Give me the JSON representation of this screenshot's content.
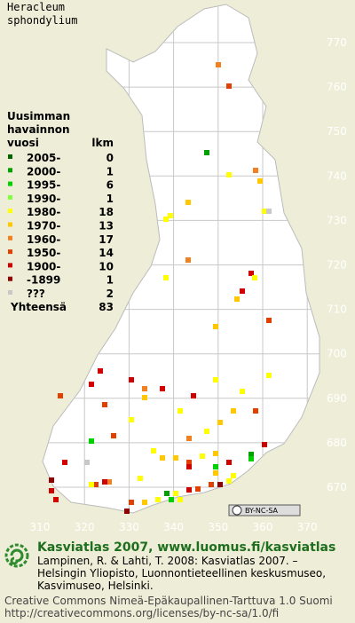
{
  "title": [
    "Heracleum",
    "sphondylium"
  ],
  "legend": {
    "heading": [
      "Uusimman",
      "havainnon",
      "vuosi"
    ],
    "count_heading": "lkm",
    "items": [
      {
        "label": "2005-",
        "count": 0,
        "color": "#006400"
      },
      {
        "label": "2000-",
        "count": 1,
        "color": "#00a000"
      },
      {
        "label": "1995-",
        "count": 6,
        "color": "#00d000"
      },
      {
        "label": "1990-",
        "count": 1,
        "color": "#80ff40"
      },
      {
        "label": "1980-",
        "count": 18,
        "color": "#ffff00"
      },
      {
        "label": "1970-",
        "count": 13,
        "color": "#ffc800"
      },
      {
        "label": "1960-",
        "count": 17,
        "color": "#f08020"
      },
      {
        "label": "1950-",
        "count": 14,
        "color": "#e04000"
      },
      {
        "label": "1900-",
        "count": 10,
        "color": "#d00000"
      },
      {
        "label": "-1899",
        "count": 1,
        "color": "#900000"
      },
      {
        "label": "???",
        "count": 2,
        "color": "#c8c8c8"
      }
    ],
    "total_label": "Yhteensä",
    "total": 83
  },
  "grid": {
    "north_labels": [
      770,
      760,
      750,
      740,
      730,
      720,
      710,
      700,
      690,
      680,
      670
    ],
    "east_labels": [
      310,
      320,
      330,
      340,
      350,
      360,
      370
    ]
  },
  "badge": "BY-NC-SA",
  "footer": {
    "site": "Kasviatlas 2007, www.luomus.fi/kasviatlas",
    "citation": [
      "Lampinen, R. & Lahti, T. 2008: Kasviatlas 2007. –",
      "Helsingin Yliopisto, Luonnontieteellinen keskusmuseo,",
      "Kasvimuseo, Helsinki."
    ],
    "license": [
      "Creative Commons Nimeä-Epäkaupallinen-Tarttuva 1.0 Suomi",
      "http://creativecommons.org/licenses/by-nc-sa/1.0/fi"
    ]
  }
}
